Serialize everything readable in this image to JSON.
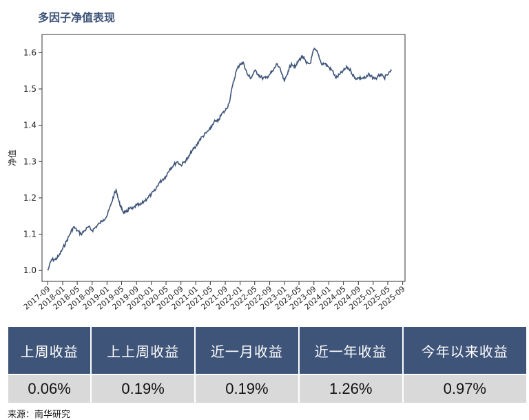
{
  "title": "多因子净值表现",
  "chart_data": {
    "type": "line",
    "ylabel": "净值",
    "ylim": [
      0.97,
      1.65
    ],
    "yticks": [
      1.0,
      1.1,
      1.2,
      1.3,
      1.4,
      1.5,
      1.6
    ],
    "xlim": [
      "2017-07-15",
      "2025-09-20"
    ],
    "xticks": [
      "2017-09",
      "2018-01",
      "2018-05",
      "2018-09",
      "2019-01",
      "2019-05",
      "2019-09",
      "2020-01",
      "2020-05",
      "2020-09",
      "2021-01",
      "2021-05",
      "2021-09",
      "2022-01",
      "2022-05",
      "2022-09",
      "2023-01",
      "2023-05",
      "2023-09",
      "2024-01",
      "2024-05",
      "2024-09",
      "2025-01",
      "2025-05",
      "2025-09"
    ],
    "grid": false,
    "color": "#3d5478",
    "series": [
      {
        "x": [
          "2017-09-01",
          "2017-10-01",
          "2017-11-01",
          "2017-12-01",
          "2018-01-01",
          "2018-02-01",
          "2018-03-01",
          "2018-04-01",
          "2018-05-01",
          "2018-06-01",
          "2018-07-01",
          "2018-08-01",
          "2018-09-01",
          "2018-10-01",
          "2018-11-01",
          "2018-12-01",
          "2019-01-01",
          "2019-02-01",
          "2019-03-01",
          "2019-03-20",
          "2019-04-10",
          "2019-05-01",
          "2019-05-20",
          "2019-06-10",
          "2019-07-01",
          "2019-08-01",
          "2019-09-01",
          "2019-10-01",
          "2019-11-01",
          "2019-12-01",
          "2020-01-01",
          "2020-02-01",
          "2020-03-01",
          "2020-04-01",
          "2020-05-01",
          "2020-06-01",
          "2020-07-01",
          "2020-08-01",
          "2020-09-01",
          "2020-10-01",
          "2020-11-01",
          "2020-12-01",
          "2021-01-01",
          "2021-02-01",
          "2021-03-01",
          "2021-04-01",
          "2021-05-01",
          "2021-06-01",
          "2021-07-01",
          "2021-08-01",
          "2021-09-01",
          "2021-10-01",
          "2021-11-01",
          "2021-12-01",
          "2022-01-01",
          "2022-02-01",
          "2022-03-01",
          "2022-04-01",
          "2022-05-01",
          "2022-06-01",
          "2022-07-01",
          "2022-08-01",
          "2022-09-01",
          "2022-10-01",
          "2022-11-01",
          "2022-12-01",
          "2023-01-01",
          "2023-02-01",
          "2023-03-01",
          "2023-04-01",
          "2023-05-01",
          "2023-06-01",
          "2023-07-01",
          "2023-08-01",
          "2023-09-01",
          "2023-10-01",
          "2023-11-01",
          "2023-12-01",
          "2024-01-01",
          "2024-02-01",
          "2024-03-01",
          "2024-04-01",
          "2024-05-01",
          "2024-06-01",
          "2024-07-01",
          "2024-08-01",
          "2024-09-01",
          "2024-10-01",
          "2024-11-01",
          "2024-12-01",
          "2025-01-01",
          "2025-02-01",
          "2025-03-01",
          "2025-04-01",
          "2025-05-01",
          "2025-06-01"
        ],
        "y": [
          1.0,
          1.03,
          1.03,
          1.04,
          1.06,
          1.08,
          1.1,
          1.12,
          1.11,
          1.1,
          1.11,
          1.12,
          1.11,
          1.12,
          1.13,
          1.14,
          1.15,
          1.18,
          1.21,
          1.22,
          1.19,
          1.17,
          1.16,
          1.16,
          1.17,
          1.17,
          1.18,
          1.18,
          1.19,
          1.2,
          1.21,
          1.22,
          1.24,
          1.25,
          1.26,
          1.28,
          1.29,
          1.3,
          1.29,
          1.3,
          1.31,
          1.33,
          1.34,
          1.36,
          1.37,
          1.38,
          1.39,
          1.41,
          1.41,
          1.43,
          1.44,
          1.46,
          1.51,
          1.55,
          1.57,
          1.57,
          1.54,
          1.53,
          1.55,
          1.54,
          1.53,
          1.53,
          1.54,
          1.55,
          1.57,
          1.55,
          1.52,
          1.55,
          1.57,
          1.56,
          1.58,
          1.59,
          1.57,
          1.57,
          1.61,
          1.6,
          1.57,
          1.57,
          1.56,
          1.55,
          1.53,
          1.54,
          1.55,
          1.56,
          1.55,
          1.53,
          1.53,
          1.53,
          1.53,
          1.54,
          1.53,
          1.53,
          1.54,
          1.53,
          1.54,
          1.55
        ]
      }
    ]
  },
  "table": {
    "headers": [
      "上周收益",
      "上上周收益",
      "近一月收益",
      "近一年收益",
      "今年以来收益"
    ],
    "values": [
      "0.06%",
      "0.19%",
      "0.19%",
      "1.26%",
      "0.97%"
    ]
  },
  "source": "来源：南华研究"
}
